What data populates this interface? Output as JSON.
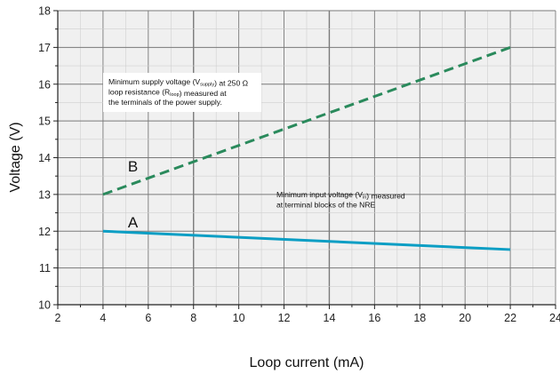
{
  "chart_data": {
    "type": "line",
    "title": "",
    "xlabel": "Loop current (mA)",
    "ylabel": "Voltage (V)",
    "xlim": [
      2,
      24
    ],
    "ylim": [
      10,
      18
    ],
    "x_ticks": [
      2,
      4,
      6,
      8,
      10,
      12,
      14,
      16,
      18,
      20,
      22,
      24
    ],
    "y_ticks": [
      10,
      11,
      12,
      13,
      14,
      15,
      16,
      17,
      18
    ],
    "grid": true,
    "series": [
      {
        "name": "A",
        "x": [
          4,
          22
        ],
        "y": [
          12.0,
          11.5
        ],
        "color": "#0b9ec4",
        "style": "solid"
      },
      {
        "name": "B",
        "x": [
          4,
          22
        ],
        "y": [
          13.0,
          17.0
        ],
        "color": "#2a8a5c",
        "style": "dashed"
      }
    ],
    "annotations": [
      {
        "id": "supply",
        "lines": [
          [
            {
              "t": "Minimum supply voltage (V"
            },
            {
              "t": "supply",
              "sub": true
            },
            {
              "t": ") at 250 Ω"
            }
          ],
          [
            {
              "t": "loop resistance (R"
            },
            {
              "t": "loop",
              "sub": true
            },
            {
              "t": ") measured at"
            }
          ],
          [
            {
              "t": "the terminals of the power supply."
            }
          ]
        ]
      },
      {
        "id": "input",
        "lines": [
          [
            {
              "t": "Minimum input voltage (V"
            },
            {
              "t": "in",
              "sub": true
            },
            {
              "t": ") measured"
            }
          ],
          [
            {
              "t": "at terminal blocks of the NRE"
            }
          ]
        ]
      }
    ]
  }
}
